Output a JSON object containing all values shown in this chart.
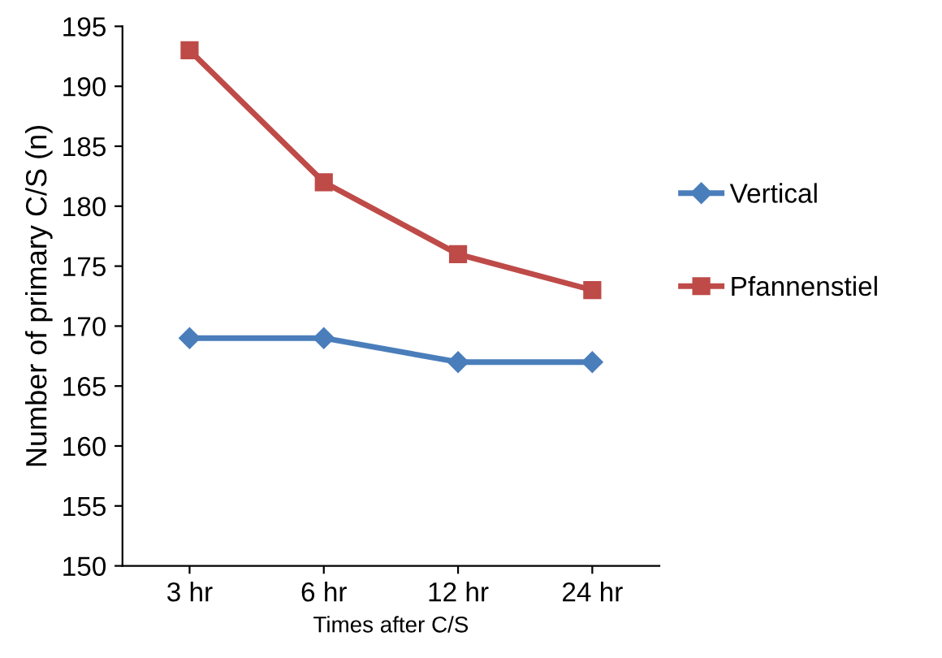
{
  "chart_data": {
    "type": "line",
    "xlabel": "Times after C/S",
    "ylabel": "Number of primary C/S (n)",
    "categories": [
      "3 hr",
      "6 hr",
      "12 hr",
      "24 hr"
    ],
    "series": [
      {
        "name": "Vertical",
        "color": "#4a7ebb",
        "marker": "diamond",
        "values": [
          169,
          169,
          167,
          167
        ]
      },
      {
        "name": "Pfannenstiel",
        "color": "#be4b48",
        "marker": "square",
        "values": [
          193,
          182,
          176,
          173
        ]
      }
    ],
    "ylim": [
      150,
      195
    ],
    "yticks": [
      150,
      155,
      160,
      165,
      170,
      175,
      180,
      185,
      190,
      195
    ],
    "grid": false,
    "legend": "right"
  }
}
